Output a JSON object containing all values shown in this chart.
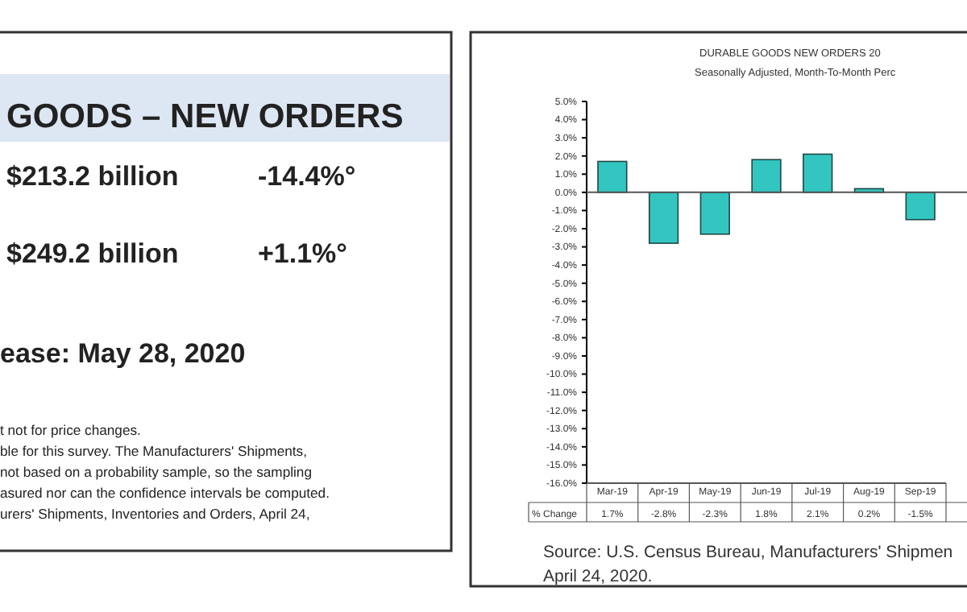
{
  "chart_data": [
    {
      "type": "other",
      "title": "GOODS – NEW ORDERS",
      "annotations": [
        "$213.2 billion",
        "-14.4%°",
        "$249.2 billion",
        "+1.1%°",
        "ease: May 28, 2020",
        "t not for price changes.",
        "ble for this survey.  The Manufacturers' Shipments,",
        "not based on a probability sample, so the sampling",
        "asured nor can the confidence intervals be computed.",
        "urers' Shipments, Inventories and Orders, April 24,"
      ]
    },
    {
      "type": "bar",
      "title": "DURABLE GOODS NEW ORDERS 20",
      "subtitle": "Seasonally Adjusted,  Month-To-Month  Perc",
      "categories": [
        "Mar-19",
        "Apr-19",
        "May-19",
        "Jun-19",
        "Jul-19",
        "Aug-19",
        "Sep-19"
      ],
      "values": [
        1.7,
        -2.8,
        -2.3,
        1.8,
        2.1,
        0.2,
        -1.5
      ],
      "color": "#33c6c0",
      "value_labels": [
        "1.7%",
        "-2.8%",
        "-2.3%",
        "1.8%",
        "2.1%",
        "0.2%",
        "-1.5%"
      ],
      "ylim": [
        -16,
        5
      ],
      "yticks": [
        {
          "value": 5,
          "label": "5.0%"
        },
        {
          "value": 4,
          "label": "4.0%"
        },
        {
          "value": 3,
          "label": "3.0%"
        },
        {
          "value": 2,
          "label": "2.0%"
        },
        {
          "value": 1,
          "label": "1.0%"
        },
        {
          "value": 0,
          "label": "0.0%"
        },
        {
          "value": -1,
          "label": "-1.0%"
        },
        {
          "value": -2,
          "label": "-2.0%"
        },
        {
          "value": -3,
          "label": "-3.0%"
        },
        {
          "value": -4,
          "label": "-4.0%"
        },
        {
          "value": -5,
          "label": "-5.0%"
        },
        {
          "value": -6,
          "label": "-6.0%"
        },
        {
          "value": -7,
          "label": "-7.0%"
        },
        {
          "value": -8,
          "label": "-8.0%"
        },
        {
          "value": -9,
          "label": "-9.0%"
        },
        {
          "value": -10,
          "label": "-10.0%"
        },
        {
          "value": -11,
          "label": "-11.0%"
        },
        {
          "value": -12,
          "label": "-12.0%"
        },
        {
          "value": -13,
          "label": "-13.0%"
        },
        {
          "value": -14,
          "label": "-14.0%"
        },
        {
          "value": -15,
          "label": "-15.0%"
        },
        {
          "value": -16,
          "label": "-16.0%"
        }
      ],
      "annotations": [
        "% Change",
        "Source: U.S. Census Bureau, Manufacturers' Shipmen",
        "April 24, 2020."
      ]
    }
  ]
}
